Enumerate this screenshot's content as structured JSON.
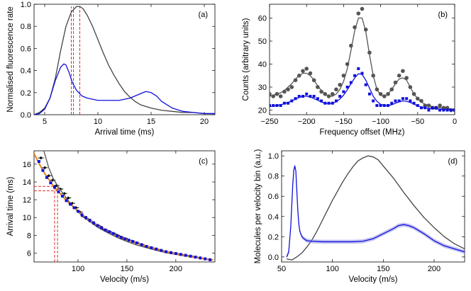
{
  "chart_data": [
    {
      "type": "line",
      "panel": "(a)",
      "xlabel": "Arrival time (ms)",
      "ylabel": "Normalised fluorescence rate",
      "xlim": [
        4,
        21
      ],
      "ylim": [
        0,
        1.0
      ],
      "xticks": [
        5,
        10,
        15,
        20
      ],
      "yticks": [
        0.0,
        0.2,
        0.4,
        0.6,
        0.8,
        1.0
      ],
      "series": [
        {
          "color": "#444444",
          "x": [
            4.0,
            4.5,
            5.0,
            5.5,
            6.0,
            6.5,
            7.0,
            7.5,
            8.0,
            8.3,
            8.6,
            9.0,
            9.5,
            10.0,
            10.5,
            11.0,
            11.5,
            12.0,
            12.5,
            13.0,
            13.5,
            14.0,
            15.0,
            16.0,
            17.0,
            18.0,
            19.0,
            20.0,
            21.0
          ],
          "y": [
            0.0,
            0.02,
            0.06,
            0.15,
            0.33,
            0.58,
            0.8,
            0.93,
            0.98,
            0.98,
            0.96,
            0.9,
            0.8,
            0.68,
            0.56,
            0.45,
            0.36,
            0.28,
            0.21,
            0.16,
            0.12,
            0.09,
            0.06,
            0.04,
            0.03,
            0.02,
            0.02,
            0.01,
            0.01
          ]
        },
        {
          "color": "#1010dd",
          "x": [
            4.0,
            4.5,
            5.0,
            5.5,
            6.0,
            6.5,
            6.8,
            7.0,
            7.3,
            7.6,
            8.0,
            8.5,
            9.0,
            9.5,
            10.0,
            11.0,
            12.0,
            13.0,
            13.5,
            14.0,
            14.5,
            15.0,
            15.5,
            16.0,
            17.0,
            18.0,
            19.0,
            20.0,
            21.0
          ],
          "y": [
            0.0,
            0.01,
            0.05,
            0.15,
            0.31,
            0.43,
            0.46,
            0.45,
            0.38,
            0.29,
            0.22,
            0.17,
            0.15,
            0.14,
            0.13,
            0.13,
            0.13,
            0.15,
            0.17,
            0.19,
            0.21,
            0.2,
            0.17,
            0.12,
            0.06,
            0.03,
            0.02,
            0.01,
            0.01
          ]
        }
      ],
      "vlines": [
        7.5,
        7.7,
        8.3
      ]
    },
    {
      "type": "scatter",
      "panel": "(b)",
      "xlabel": "Frequency offset (MHz)",
      "ylabel": "Counts (arbitrary units)",
      "xlim": [
        -250,
        0
      ],
      "ylim": [
        18,
        66
      ],
      "xticks": [
        -250,
        -200,
        -150,
        -100,
        -50,
        0
      ],
      "yticks": [
        20,
        30,
        40,
        50,
        60
      ],
      "series": [
        {
          "color": "#555555",
          "marker": "circle",
          "x": [
            -250,
            -245,
            -240,
            -235,
            -230,
            -225,
            -220,
            -215,
            -210,
            -205,
            -200,
            -195,
            -190,
            -185,
            -180,
            -175,
            -170,
            -165,
            -160,
            -155,
            -150,
            -145,
            -140,
            -135,
            -130,
            -125,
            -120,
            -115,
            -110,
            -105,
            -100,
            -95,
            -90,
            -85,
            -80,
            -75,
            -70,
            -65,
            -60,
            -55,
            -50,
            -45,
            -40,
            -35,
            -30,
            -25,
            -20,
            -15,
            -10,
            -5,
            0
          ],
          "y": [
            27,
            26,
            27,
            26,
            28,
            29,
            30,
            33,
            35,
            37,
            38,
            36,
            33,
            30,
            28,
            27,
            26,
            27,
            29,
            31,
            35,
            40,
            48,
            56,
            62,
            64,
            55,
            45,
            35,
            29,
            27,
            26,
            27,
            29,
            32,
            35,
            37,
            34,
            30,
            27,
            25,
            24,
            22,
            22,
            21,
            21,
            22,
            21,
            21,
            20,
            20
          ]
        },
        {
          "color": "#555555",
          "marker": "line",
          "x": [
            -250,
            -245,
            -240,
            -235,
            -230,
            -225,
            -220,
            -215,
            -210,
            -205,
            -200,
            -195,
            -190,
            -185,
            -180,
            -175,
            -170,
            -165,
            -160,
            -155,
            -150,
            -145,
            -140,
            -135,
            -130,
            -125,
            -120,
            -115,
            -110,
            -105,
            -100,
            -95,
            -90,
            -85,
            -80,
            -75,
            -70,
            -65,
            -60,
            -55,
            -50,
            -45,
            -40,
            -35,
            -30,
            -25,
            -20,
            -15,
            -10,
            -5,
            0
          ],
          "y": [
            26,
            26.5,
            27,
            27.5,
            28.5,
            30,
            31.5,
            33.5,
            35,
            36,
            36,
            35,
            33,
            30.5,
            28.5,
            27,
            26,
            26,
            27,
            29,
            32.5,
            38,
            46,
            54.5,
            60,
            60,
            54,
            44,
            35,
            29,
            26.5,
            26,
            27,
            29,
            31.5,
            33.5,
            34,
            33,
            30,
            27,
            25,
            23.5,
            22.5,
            22,
            21.5,
            21.2,
            21,
            20.8,
            20.6,
            20.5,
            20.4
          ]
        },
        {
          "color": "#1010dd",
          "marker": "square",
          "x": [
            -250,
            -245,
            -240,
            -235,
            -230,
            -225,
            -220,
            -215,
            -210,
            -205,
            -200,
            -195,
            -190,
            -185,
            -180,
            -175,
            -170,
            -165,
            -160,
            -155,
            -150,
            -145,
            -140,
            -135,
            -130,
            -125,
            -120,
            -115,
            -110,
            -105,
            -100,
            -95,
            -90,
            -85,
            -80,
            -75,
            -70,
            -65,
            -60,
            -55,
            -50,
            -45,
            -40,
            -35,
            -30,
            -25,
            -20,
            -15,
            -10,
            -5,
            0
          ],
          "y": [
            22,
            22,
            22,
            22,
            23,
            23,
            24,
            25,
            26,
            26,
            27,
            26,
            26,
            25,
            24,
            23,
            23,
            23,
            24,
            26,
            28,
            30,
            32,
            35,
            38,
            36,
            31,
            27,
            24,
            22,
            22,
            22,
            22,
            23,
            24,
            24,
            25,
            25,
            24,
            23,
            22,
            21,
            21,
            20,
            21,
            21,
            20,
            20,
            20,
            20,
            20
          ]
        },
        {
          "color": "#1010dd",
          "marker": "line",
          "x": [
            -250,
            -245,
            -240,
            -235,
            -230,
            -225,
            -220,
            -215,
            -210,
            -205,
            -200,
            -195,
            -190,
            -185,
            -180,
            -175,
            -170,
            -165,
            -160,
            -155,
            -150,
            -145,
            -140,
            -135,
            -130,
            -125,
            -120,
            -115,
            -110,
            -105,
            -100,
            -95,
            -90,
            -85,
            -80,
            -75,
            -70,
            -65,
            -60,
            -55,
            -50,
            -45,
            -40,
            -35,
            -30,
            -25,
            -20,
            -15,
            -10,
            -5,
            0
          ],
          "y": [
            21.5,
            21.7,
            22,
            22.3,
            22.8,
            23.3,
            24,
            24.8,
            25.5,
            26,
            26,
            25.7,
            25,
            24.3,
            23.5,
            23,
            22.8,
            23,
            23.6,
            24.8,
            26.5,
            28.8,
            31.5,
            34,
            35.8,
            35.5,
            33,
            29.5,
            26,
            23.8,
            22.5,
            22,
            22,
            22.3,
            23,
            23.6,
            24,
            23.8,
            23.3,
            22.6,
            21.8,
            21.3,
            21,
            20.8,
            20.6,
            20.5,
            20.4,
            20.3,
            20.2,
            20.1,
            20
          ]
        }
      ]
    },
    {
      "type": "line",
      "panel": "(c)",
      "xlabel": "Velocity (m/s)",
      "ylabel": "Arrival time (ms)",
      "xlim": [
        55,
        240
      ],
      "ylim": [
        5,
        17.5
      ],
      "xticks": [
        100,
        150,
        200
      ],
      "yticks": [
        6,
        8,
        10,
        12,
        14,
        16
      ],
      "series": [
        {
          "color": "#000000",
          "marker": "errorbar",
          "x": [
            62,
            66,
            70,
            74,
            78,
            82,
            86,
            90,
            94,
            98,
            102,
            106,
            110,
            114,
            118,
            122,
            126,
            130,
            134,
            138,
            142,
            146,
            150,
            155,
            160,
            165,
            170,
            175,
            180,
            185,
            190,
            195,
            200,
            205,
            210,
            215,
            220,
            225,
            230,
            235
          ],
          "y": [
            16.7,
            15.6,
            14.7,
            14.2,
            13.6,
            13.2,
            12.7,
            12.2,
            11.6,
            11.1,
            10.6,
            10.1,
            9.8,
            9.5,
            9.2,
            9.0,
            8.7,
            8.5,
            8.3,
            8.1,
            7.9,
            7.7,
            7.55,
            7.35,
            7.15,
            6.95,
            6.75,
            6.6,
            6.45,
            6.3,
            6.15,
            6.05,
            5.95,
            5.85,
            5.75,
            5.65,
            5.55,
            5.45,
            5.35,
            5.25
          ]
        },
        {
          "color": "#555555",
          "marker": "line",
          "x": [
            65,
            70,
            75,
            80,
            90,
            100,
            110,
            120,
            130,
            140,
            150,
            160,
            170,
            180,
            190,
            200,
            210,
            220,
            230,
            238
          ],
          "y": [
            17.5,
            15.6,
            14.3,
            13.4,
            11.9,
            10.6,
            9.7,
            8.9,
            8.3,
            7.75,
            7.3,
            6.9,
            6.6,
            6.3,
            6.05,
            5.85,
            5.65,
            5.5,
            5.35,
            5.25
          ]
        },
        {
          "color": "#e8841a",
          "marker": "line",
          "x": [
            55,
            60,
            65,
            70,
            75,
            80,
            90,
            100,
            110,
            120,
            130,
            140,
            150,
            160,
            170,
            180,
            190,
            200,
            210,
            220,
            230,
            238
          ],
          "y": [
            17.2,
            16.1,
            15.1,
            14.3,
            13.5,
            12.9,
            11.7,
            10.7,
            9.8,
            9.1,
            8.5,
            7.95,
            7.5,
            7.1,
            6.75,
            6.45,
            6.15,
            5.9,
            5.7,
            5.5,
            5.35,
            5.22
          ]
        },
        {
          "color": "#1010dd",
          "marker": "square",
          "x": [
            60,
            64,
            68,
            72,
            76,
            80,
            84,
            88,
            92,
            96,
            100,
            104,
            108,
            112,
            116,
            120,
            124,
            128,
            132,
            136,
            140,
            144,
            148,
            152,
            156,
            160,
            165,
            170,
            175,
            180,
            185,
            190,
            195,
            200,
            205,
            210,
            215,
            220,
            225,
            230,
            235
          ],
          "y": [
            16.3,
            15.3,
            14.5,
            13.9,
            13.4,
            12.9,
            12.4,
            11.9,
            11.5,
            11.1,
            10.7,
            10.3,
            10.0,
            9.7,
            9.4,
            9.1,
            8.85,
            8.6,
            8.4,
            8.2,
            7.95,
            7.75,
            7.6,
            7.45,
            7.3,
            7.15,
            6.95,
            6.75,
            6.6,
            6.45,
            6.3,
            6.15,
            6.05,
            5.95,
            5.85,
            5.75,
            5.65,
            5.55,
            5.45,
            5.35,
            5.25
          ]
        }
      ],
      "hlines": [
        13.0,
        13.5
      ],
      "vlines": [
        76,
        79
      ]
    },
    {
      "type": "line",
      "panel": "(d)",
      "xlabel": "Velocity (m/s)",
      "ylabel": "Molecules per velocity bin (a.u.)",
      "xlim": [
        50,
        230
      ],
      "ylim": [
        -0.05,
        1.05
      ],
      "xticks": [
        50,
        100,
        150,
        200
      ],
      "yticks": [
        0.0,
        0.2,
        0.4,
        0.6,
        0.8,
        1.0
      ],
      "series": [
        {
          "color": "#444444",
          "x": [
            55,
            60,
            65,
            70,
            75,
            80,
            85,
            90,
            95,
            100,
            105,
            110,
            115,
            120,
            125,
            130,
            135,
            140,
            145,
            150,
            160,
            170,
            180,
            190,
            200,
            210,
            220,
            230
          ],
          "y": [
            -0.02,
            -0.03,
            0.0,
            0.04,
            0.1,
            0.17,
            0.26,
            0.36,
            0.46,
            0.56,
            0.65,
            0.74,
            0.82,
            0.89,
            0.95,
            0.98,
            1.0,
            0.99,
            0.96,
            0.9,
            0.78,
            0.64,
            0.51,
            0.39,
            0.29,
            0.2,
            0.13,
            0.08
          ]
        },
        {
          "color": "#1010dd",
          "x": [
            55,
            57,
            59,
            61,
            62,
            63,
            64,
            65,
            66,
            67,
            68,
            70,
            72,
            75,
            80,
            90,
            100,
            110,
            120,
            130,
            140,
            150,
            160,
            165,
            170,
            175,
            180,
            190,
            200,
            210,
            220,
            230
          ],
          "y": [
            0.0,
            0.05,
            0.3,
            0.72,
            0.86,
            0.9,
            0.85,
            0.65,
            0.45,
            0.32,
            0.25,
            0.2,
            0.18,
            0.16,
            0.155,
            0.15,
            0.15,
            0.15,
            0.15,
            0.155,
            0.18,
            0.23,
            0.28,
            0.31,
            0.32,
            0.31,
            0.29,
            0.23,
            0.16,
            0.11,
            0.08,
            0.05
          ]
        }
      ]
    }
  ],
  "colors": {
    "dark": "#444444",
    "blue": "#1010dd",
    "orange": "#e8841a",
    "red": "#e03030",
    "light_blue_band": "#8c8ce6"
  }
}
